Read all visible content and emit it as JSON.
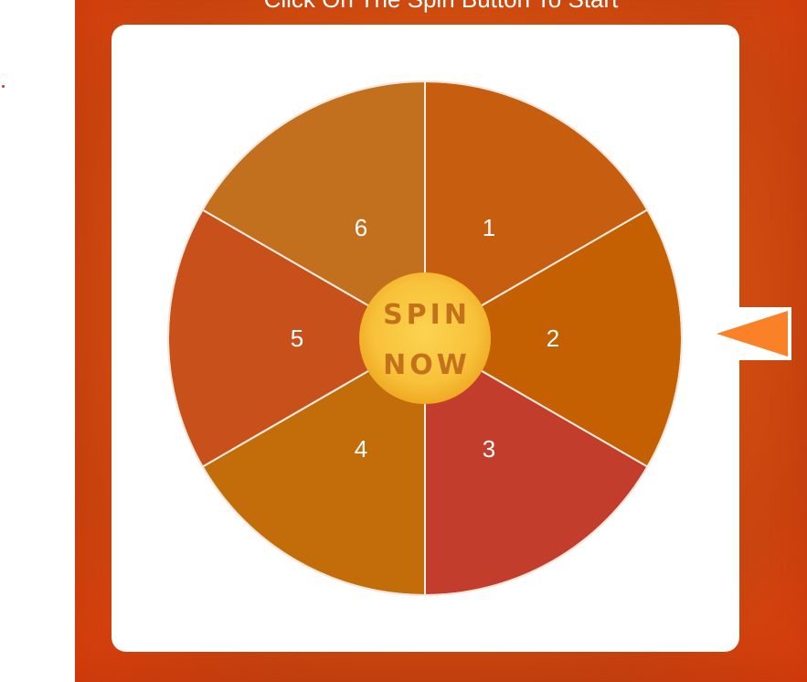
{
  "instruction": "Click On The Spin Button To Start",
  "wheel": {
    "segments": [
      {
        "label": "1",
        "color": "#c75e0f"
      },
      {
        "label": "2",
        "color": "#c46002"
      },
      {
        "label": "3",
        "color": "#c23d2b"
      },
      {
        "label": "4",
        "color": "#c36d0a"
      },
      {
        "label": "5",
        "color": "#c8501a"
      },
      {
        "label": "6",
        "color": "#c2701e"
      }
    ],
    "spin_button": {
      "line1": "SPIN",
      "line2": "NOW"
    }
  },
  "pointer": {
    "icon": "arrow-left-icon",
    "color": "#fb8128"
  },
  "colors": {
    "background": "#d4520f",
    "card": "#ffffff",
    "spin_button_fill": "#f8c23a",
    "spin_text": "#c4711c"
  }
}
